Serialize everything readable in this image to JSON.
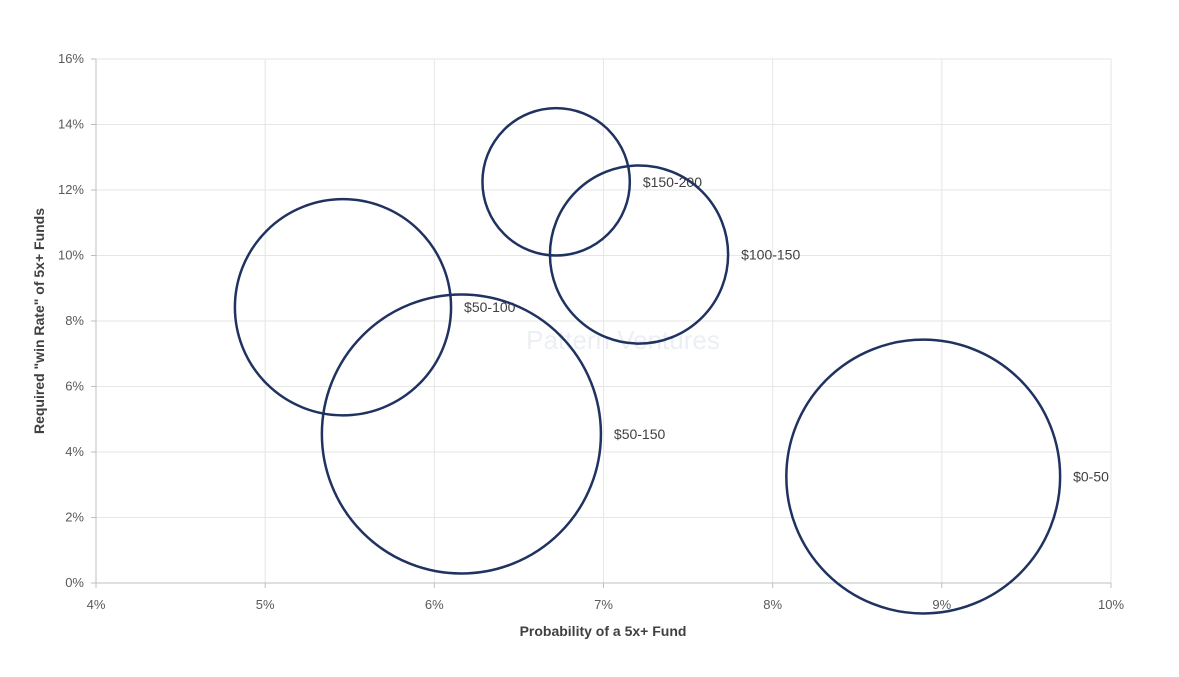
{
  "chart_data": {
    "type": "bubble",
    "xlabel": "Probability of a 5x+ Fund",
    "ylabel": "Required \"win Rate\" of 5x+ Funds",
    "xlim": [
      0.04,
      0.1
    ],
    "ylim": [
      0,
      0.16
    ],
    "x_ticks": [
      {
        "value": 0.04,
        "label": "4%"
      },
      {
        "value": 0.05,
        "label": "5%"
      },
      {
        "value": 0.06,
        "label": "6%"
      },
      {
        "value": 0.07,
        "label": "7%"
      },
      {
        "value": 0.08,
        "label": "8%"
      },
      {
        "value": 0.09,
        "label": "9%"
      },
      {
        "value": 0.1,
        "label": "10%"
      }
    ],
    "y_ticks": [
      {
        "value": 0.0,
        "label": "0%"
      },
      {
        "value": 0.02,
        "label": "2%"
      },
      {
        "value": 0.04,
        "label": "4%"
      },
      {
        "value": 0.06,
        "label": "6%"
      },
      {
        "value": 0.08,
        "label": "8%"
      },
      {
        "value": 0.1,
        "label": "10%"
      },
      {
        "value": 0.12,
        "label": "12%"
      },
      {
        "value": 0.14,
        "label": "14%"
      },
      {
        "value": 0.16,
        "label": "16%"
      }
    ],
    "grid": true,
    "bubble_color": "#1f3260",
    "watermark": "Pattern Ventures",
    "points": [
      {
        "label": "$150-200",
        "x": 0.0672,
        "y": 0.1225,
        "size": 0.0225
      },
      {
        "label": "$100-150",
        "x": 0.0721,
        "y": 0.1003,
        "size": 0.0272
      },
      {
        "label": "$50-100",
        "x": 0.0546,
        "y": 0.0842,
        "size": 0.033
      },
      {
        "label": "$50-150",
        "x": 0.0616,
        "y": 0.0455,
        "size": 0.0426
      },
      {
        "label": "$0-50",
        "x": 0.0889,
        "y": 0.0325,
        "size": 0.0418
      }
    ]
  }
}
